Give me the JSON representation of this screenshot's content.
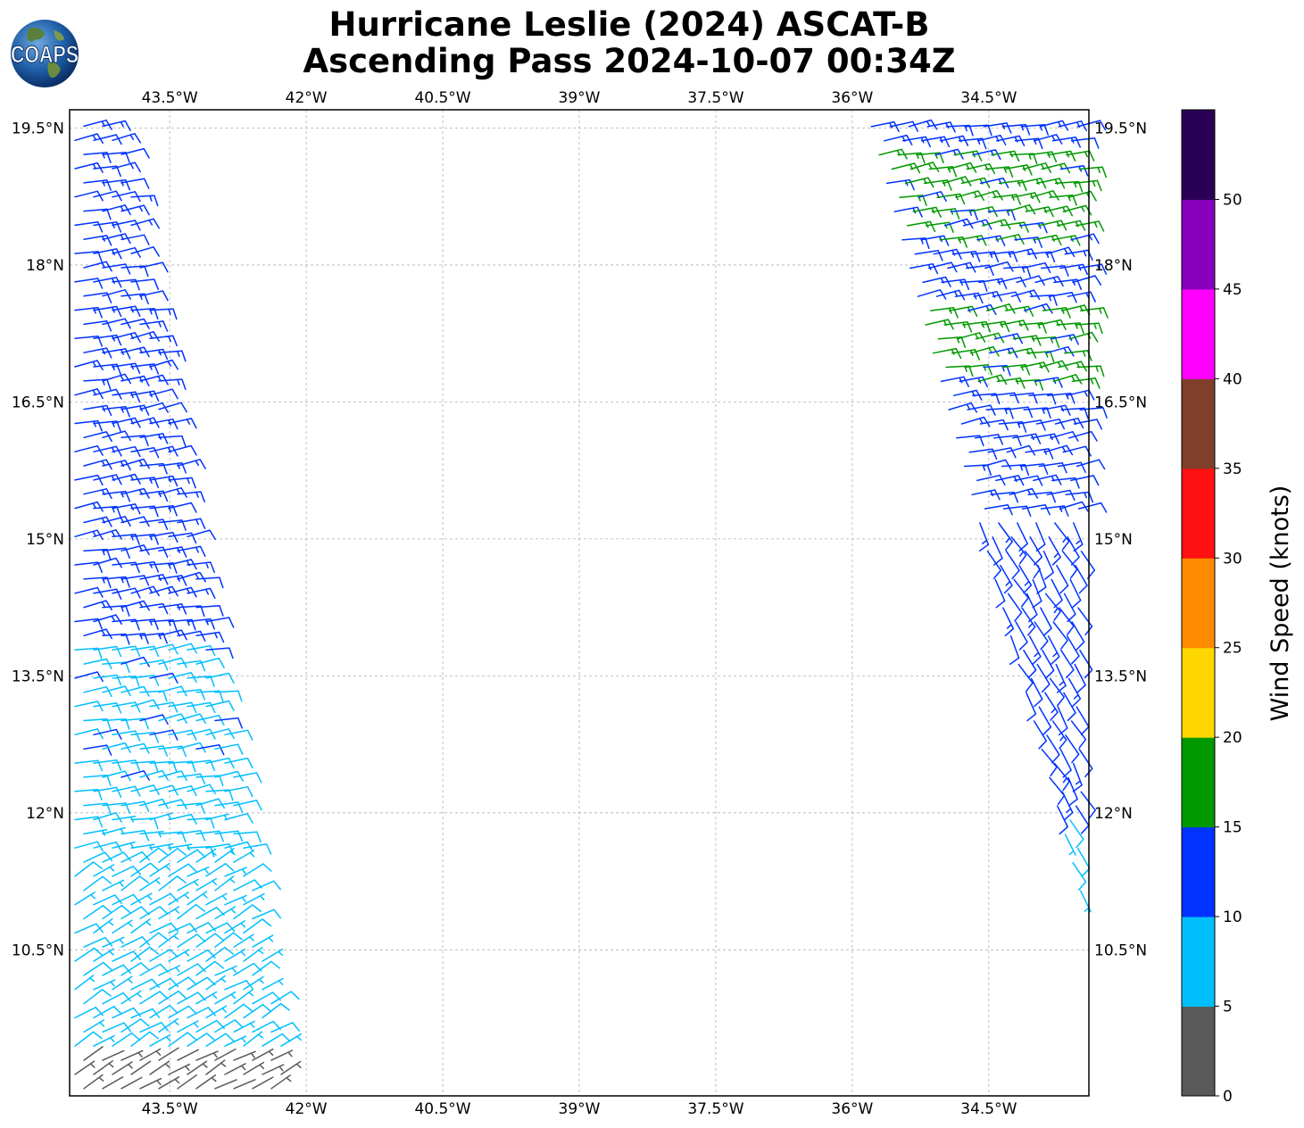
{
  "title_line1": "Hurricane Leslie (2024) ASCAT-B",
  "title_line2": "Ascending Pass 2024-10-07 00:34Z",
  "logo_text": "COAPS",
  "map": {
    "lon_range": [
      -44.6,
      -33.4
    ],
    "lat_range": [
      8.9,
      19.7
    ],
    "lon_ticks": [
      "43.5°W",
      "42°W",
      "40.5°W",
      "39°W",
      "37.5°W",
      "36°W",
      "34.5°W"
    ],
    "lat_ticks": [
      "19.5°N",
      "18°N",
      "16.5°N",
      "15°N",
      "13.5°N",
      "12°N",
      "10.5°N"
    ],
    "grid": true
  },
  "colorbar": {
    "label": "Wind Speed (knots)",
    "ticks": [
      "0",
      "5",
      "10",
      "15",
      "20",
      "25",
      "30",
      "35",
      "40",
      "45",
      "50"
    ],
    "colors": [
      "#595959",
      "#00bfff",
      "#0033ff",
      "#009900",
      "#ffd700",
      "#ff8c00",
      "#ff1111",
      "#7f3f2a",
      "#ff00ff",
      "#8800bb",
      "#2a0055"
    ]
  },
  "chart_data": {
    "type": "wind-barbs",
    "title": "Hurricane Leslie (2024) ASCAT-B Ascending Pass 2024-10-07 00:34Z",
    "color_scale": "Wind Speed (knots)",
    "swaths": [
      {
        "side": "west",
        "lat_range": [
          8.9,
          19.7
        ],
        "west_edge_lon": [
          -44.6,
          -44.6
        ],
        "east_edge_lon": [
          -42.1,
          -44.0
        ],
        "speed_bands": [
          {
            "lat_range": [
              8.9,
              9.3
            ],
            "speed_kt": 3
          },
          {
            "lat_range": [
              9.3,
              12.0
            ],
            "speed_kt": 8
          },
          {
            "lat_range": [
              12.0,
              13.8
            ],
            "speed_kt": 9
          },
          {
            "lat_range": [
              13.8,
              19.7
            ],
            "speed_kt": 13
          }
        ]
      },
      {
        "side": "east",
        "lat_range": [
          10.6,
          19.7
        ],
        "west_edge_lon": [
          -33.4,
          -35.9
        ],
        "east_edge_lon": [
          -33.4,
          -33.4
        ],
        "speed_bands": [
          {
            "lat_range": [
              10.6,
              12.0
            ],
            "speed_kt": 8
          },
          {
            "lat_range": [
              12.0,
              16.7
            ],
            "speed_kt": 12
          },
          {
            "lat_range": [
              16.7,
              17.5
            ],
            "speed_kt": 16
          },
          {
            "lat_range": [
              17.5,
              18.2
            ],
            "speed_kt": 13
          },
          {
            "lat_range": [
              18.2,
              19.3
            ],
            "speed_kt": 16
          },
          {
            "lat_range": [
              19.3,
              19.7
            ],
            "speed_kt": 13
          }
        ]
      }
    ]
  }
}
